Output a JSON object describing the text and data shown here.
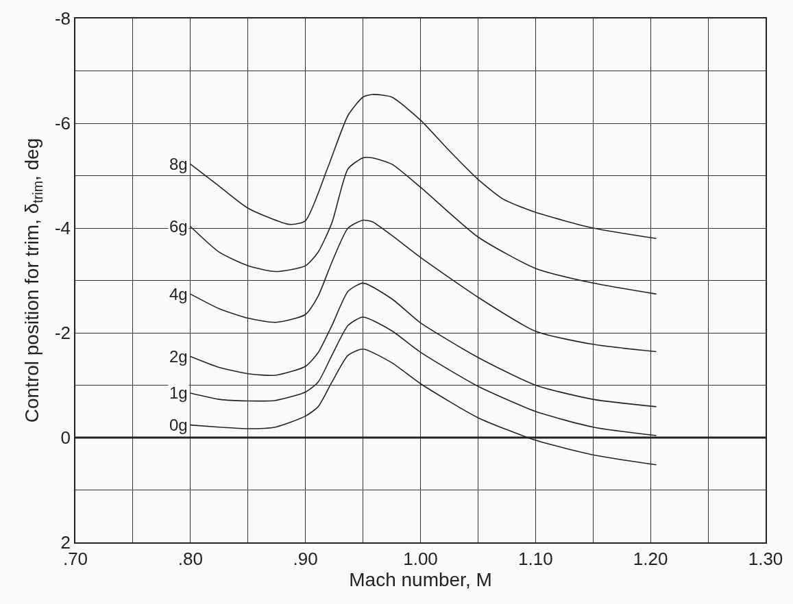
{
  "chart_data": {
    "type": "line",
    "xlabel": "Mach number, M",
    "ylabel": "Control position for trim, δ$_{trim}$, deg",
    "xlim": [
      0.7,
      1.3
    ],
    "ylim": [
      2,
      -8
    ],
    "xticks": [
      {
        "value": 0.7,
        "label": ".70"
      },
      {
        "value": 0.75,
        "label": null
      },
      {
        "value": 0.8,
        "label": ".80"
      },
      {
        "value": 0.85,
        "label": null
      },
      {
        "value": 0.9,
        "label": ".90"
      },
      {
        "value": 0.95,
        "label": null
      },
      {
        "value": 1.0,
        "label": "1.00"
      },
      {
        "value": 1.05,
        "label": null
      },
      {
        "value": 1.1,
        "label": "1.10"
      },
      {
        "value": 1.15,
        "label": null
      },
      {
        "value": 1.2,
        "label": "1.20"
      },
      {
        "value": 1.25,
        "label": null
      },
      {
        "value": 1.3,
        "label": "1.30"
      }
    ],
    "yticks": [
      2,
      {
        "value": 1,
        "label": null
      },
      0,
      {
        "value": -1,
        "label": null
      },
      -2,
      {
        "value": -3,
        "label": null
      },
      -4,
      {
        "value": -5,
        "label": null
      },
      -6,
      {
        "value": -7,
        "label": null
      },
      -8
    ],
    "grid": true,
    "legend": false,
    "marker": "none",
    "line_style": "solid",
    "ref_lines": [
      {
        "axis": "y",
        "value": 0,
        "color": "#222222"
      }
    ],
    "series": [
      {
        "name": "8g",
        "color": "#222222",
        "x": [
          0.8,
          0.825,
          0.85,
          0.886,
          0.9,
          0.919,
          0.937,
          0.95,
          0.958,
          0.975,
          1.0,
          1.024,
          1.05,
          1.072,
          1.1,
          1.15,
          1.205
        ],
        "values": [
          -5.22,
          -4.8,
          -4.38,
          -4.07,
          -4.14,
          -5.13,
          -6.15,
          -6.5,
          -6.55,
          -6.5,
          -6.06,
          -5.5,
          -4.93,
          -4.55,
          -4.3,
          -4.0,
          -3.8
        ]
      },
      {
        "name": "6g",
        "color": "#222222",
        "x": [
          0.8,
          0.825,
          0.85,
          0.874,
          0.9,
          0.911,
          0.923,
          0.937,
          0.95,
          0.958,
          0.975,
          1.0,
          1.05,
          1.1,
          1.15,
          1.205
        ],
        "values": [
          -4.03,
          -3.54,
          -3.28,
          -3.17,
          -3.28,
          -3.54,
          -4.1,
          -5.13,
          -5.34,
          -5.34,
          -5.22,
          -4.78,
          -3.83,
          -3.23,
          -2.95,
          -2.74
        ]
      },
      {
        "name": "4g",
        "color": "#222222",
        "x": [
          0.8,
          0.825,
          0.85,
          0.874,
          0.9,
          0.911,
          0.923,
          0.937,
          0.95,
          0.958,
          0.975,
          1.0,
          1.05,
          1.1,
          1.15,
          1.205
        ],
        "values": [
          -2.74,
          -2.46,
          -2.28,
          -2.2,
          -2.35,
          -2.7,
          -3.35,
          -4.0,
          -4.15,
          -4.12,
          -3.86,
          -3.44,
          -2.68,
          -2.03,
          -1.78,
          -1.64
        ]
      },
      {
        "name": "2g",
        "color": "#222222",
        "x": [
          0.8,
          0.825,
          0.85,
          0.874,
          0.9,
          0.911,
          0.923,
          0.937,
          0.95,
          0.975,
          1.0,
          1.05,
          1.1,
          1.15,
          1.205
        ],
        "values": [
          -1.55,
          -1.34,
          -1.22,
          -1.19,
          -1.36,
          -1.62,
          -2.14,
          -2.79,
          -2.95,
          -2.65,
          -2.19,
          -1.53,
          -1.0,
          -0.73,
          -0.59
        ]
      },
      {
        "name": "1g",
        "color": "#222222",
        "x": [
          0.8,
          0.825,
          0.85,
          0.874,
          0.9,
          0.911,
          0.923,
          0.937,
          0.95,
          0.975,
          1.0,
          1.05,
          1.1,
          1.15,
          1.205
        ],
        "values": [
          -0.85,
          -0.73,
          -0.7,
          -0.71,
          -0.87,
          -1.06,
          -1.57,
          -2.14,
          -2.3,
          -2.04,
          -1.63,
          -0.98,
          -0.5,
          -0.2,
          -0.04
        ]
      },
      {
        "name": "0g",
        "color": "#222222",
        "x": [
          0.8,
          0.825,
          0.85,
          0.874,
          0.9,
          0.911,
          0.923,
          0.937,
          0.95,
          0.975,
          1.0,
          1.05,
          1.1,
          1.15,
          1.205
        ],
        "values": [
          -0.24,
          -0.2,
          -0.17,
          -0.2,
          -0.41,
          -0.59,
          -1.06,
          -1.57,
          -1.69,
          -1.43,
          -1.03,
          -0.38,
          0.05,
          0.33,
          0.52
        ]
      }
    ]
  }
}
